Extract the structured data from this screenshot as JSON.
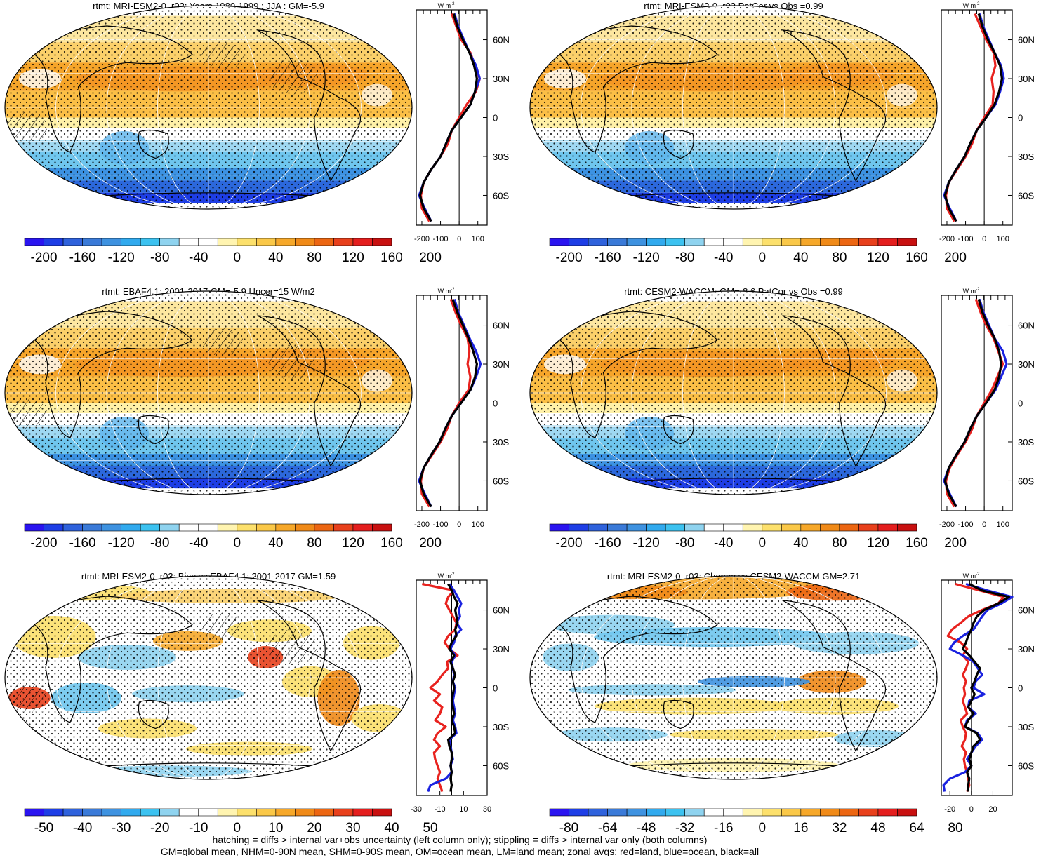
{
  "colorbars": [
    {
      "colors": [
        "#2a14f0",
        "#1e3ee6",
        "#2f62dc",
        "#3a7ad8",
        "#3e92e0",
        "#31aaee",
        "#3cc2f0",
        "#8fd3ef",
        "#ffffff",
        "#ffffff",
        "#fff4b0",
        "#fce06c",
        "#fac848",
        "#f6a82a",
        "#f08a18",
        "#ec6612",
        "#e8401c",
        "#e41e1e",
        "#c81010"
      ],
      "labels": [
        "-200",
        "-160",
        "-120",
        "-80",
        "-40",
        "0",
        "40",
        "80",
        "120",
        "160",
        "200"
      ]
    },
    {
      "colors": [
        "#2a14f0",
        "#1e3ee6",
        "#2f62dc",
        "#3a7ad8",
        "#3e92e0",
        "#31aaee",
        "#3cc2f0",
        "#8fd3ef",
        "#ffffff",
        "#ffffff",
        "#fff4b0",
        "#fce06c",
        "#fac848",
        "#f6a82a",
        "#f08a18",
        "#ec6612",
        "#e8401c",
        "#e41e1e",
        "#c81010"
      ],
      "labels": [
        "-50",
        "-40",
        "-30",
        "-20",
        "-10",
        "0",
        "10",
        "20",
        "30",
        "40",
        "50"
      ]
    },
    {
      "colors": [
        "#2a14f0",
        "#1e3ee6",
        "#2f62dc",
        "#3a7ad8",
        "#3e92e0",
        "#31aaee",
        "#3cc2f0",
        "#8fd3ef",
        "#ffffff",
        "#ffffff",
        "#fff4b0",
        "#fce06c",
        "#fac848",
        "#f6a82a",
        "#f08a18",
        "#ec6612",
        "#e8401c",
        "#e41e1e",
        "#c81010"
      ],
      "labels": [
        "-80",
        "-64",
        "-48",
        "-32",
        "-16",
        "0",
        "16",
        "32",
        "48",
        "64",
        "80"
      ]
    }
  ],
  "zonal_common": {
    "unit_label": "W m",
    "unit_exp": "-2",
    "lat_labels": [
      "60N",
      "30N",
      "0",
      "30S",
      "60S"
    ],
    "line_colors": {
      "land": "#e8221e",
      "ocean": "#1a22e0",
      "all": "#000000"
    }
  },
  "footer": {
    "line1": "hatching = diffs > internal var+obs uncertainty (left column only); stippling = diffs > internal var only (both columns)",
    "line2": "GM=global mean, NHM=0-90N mean, SHM=0-90S mean, OM=ocean mean, LM=land mean; zonal avgs: red=land, blue=ocean, black=all"
  },
  "chart_data": [
    {
      "type": "heatmap",
      "title": "rtmt: MRI-ESM2-0_r03: Years 1980-1999 : JJA : GM=-5.9",
      "colorbar": 0,
      "map_style": "clim",
      "zonal": {
        "xticklabels": [
          "-200",
          "-100",
          "0",
          "100"
        ],
        "xticks": [
          -200,
          -100,
          0,
          100
        ],
        "xlim": [
          -230,
          150
        ],
        "lat": [
          80,
          70,
          60,
          50,
          40,
          30,
          20,
          10,
          0,
          -10,
          -20,
          -30,
          -40,
          -50,
          -60,
          -70,
          -80
        ],
        "all": [
          -30,
          -10,
          20,
          55,
          80,
          95,
          85,
          60,
          10,
          -40,
          -70,
          -100,
          -150,
          -190,
          -210,
          -190,
          -150
        ],
        "land": [
          -40,
          -15,
          10,
          60,
          85,
          110,
          90,
          40,
          0,
          -40,
          -60,
          -100,
          -150,
          -190,
          -205,
          -200,
          -160
        ],
        "ocean": [
          -25,
          -5,
          25,
          55,
          90,
          110,
          85,
          60,
          10,
          -40,
          -70,
          -100,
          -150,
          -190,
          -215,
          -185,
          -150
        ]
      }
    },
    {
      "type": "heatmap",
      "title": "rtmt: MRI-ESM2-0_r03 PatCor vs Obs =0.99",
      "colorbar": 0,
      "map_style": "clim",
      "zonal": {
        "xticklabels": [
          "-200",
          "-100",
          "0",
          "100"
        ],
        "xticks": [
          -200,
          -100,
          0,
          100
        ],
        "xlim": [
          -230,
          150
        ],
        "lat": [
          80,
          70,
          60,
          50,
          40,
          30,
          20,
          10,
          0,
          -10,
          -20,
          -30,
          -40,
          -50,
          -60,
          -70,
          -80
        ],
        "all": [
          -30,
          -10,
          20,
          55,
          85,
          95,
          80,
          55,
          10,
          -40,
          -75,
          -105,
          -150,
          -190,
          -210,
          -190,
          -150
        ],
        "land": [
          -50,
          -20,
          10,
          50,
          60,
          40,
          50,
          45,
          0,
          -40,
          -65,
          -100,
          -145,
          -190,
          -205,
          -200,
          -160
        ],
        "ocean": [
          -25,
          -5,
          25,
          55,
          90,
          105,
          85,
          60,
          10,
          -40,
          -75,
          -105,
          -150,
          -190,
          -215,
          -185,
          -150
        ]
      }
    },
    {
      "type": "heatmap",
      "title": "rtmt: EBAF4.1: 2001-2017 GM=-5.9 Uncer=15 W/m2",
      "colorbar": 0,
      "map_style": "clim",
      "zonal": {
        "xticklabels": [
          "-200",
          "-100",
          "0",
          "100"
        ],
        "xticks": [
          -200,
          -100,
          0,
          100
        ],
        "xlim": [
          -230,
          150
        ],
        "lat": [
          80,
          70,
          60,
          50,
          40,
          30,
          20,
          10,
          0,
          -10,
          -20,
          -30,
          -40,
          -50,
          -60,
          -70,
          -80
        ],
        "all": [
          -35,
          -10,
          20,
          50,
          75,
          95,
          85,
          60,
          10,
          -40,
          -75,
          -105,
          -150,
          -190,
          -210,
          -190,
          -150
        ],
        "land": [
          -45,
          -20,
          10,
          45,
          55,
          45,
          60,
          50,
          0,
          -40,
          -65,
          -100,
          -145,
          -190,
          -205,
          -200,
          -160
        ],
        "ocean": [
          -25,
          -5,
          25,
          55,
          90,
          115,
          90,
          60,
          10,
          -40,
          -75,
          -105,
          -150,
          -190,
          -215,
          -185,
          -150
        ]
      }
    },
    {
      "type": "heatmap",
      "title": "rtmt: CESM2-WACCM: GM=-8.6 PatCor vs Obs =0.99",
      "colorbar": 0,
      "map_style": "clim",
      "zonal": {
        "xticklabels": [
          "-200",
          "-100",
          "0",
          "100"
        ],
        "xticks": [
          -200,
          -100,
          0,
          100
        ],
        "xlim": [
          -230,
          150
        ],
        "lat": [
          80,
          70,
          60,
          50,
          40,
          30,
          20,
          10,
          0,
          -10,
          -20,
          -30,
          -40,
          -50,
          -60,
          -70,
          -80
        ],
        "all": [
          -30,
          -10,
          20,
          55,
          80,
          90,
          80,
          55,
          10,
          -40,
          -75,
          -105,
          -150,
          -190,
          -210,
          -190,
          -150
        ],
        "land": [
          -45,
          -20,
          10,
          50,
          75,
          100,
          70,
          40,
          0,
          -40,
          -65,
          -100,
          -145,
          -185,
          -205,
          -200,
          -160
        ],
        "ocean": [
          -25,
          -5,
          25,
          55,
          100,
          120,
          90,
          60,
          10,
          -40,
          -75,
          -105,
          -150,
          -190,
          -215,
          -185,
          -150
        ]
      }
    },
    {
      "type": "heatmap",
      "title": "rtmt: MRI-ESM2-0_r03: Bias vs EBAF4.1: 2001-2017 GM=1.59",
      "colorbar": 1,
      "map_style": "bias",
      "zonal": {
        "xticklabels": [
          "-30",
          "-10",
          "10",
          "30"
        ],
        "xticks": [
          -30,
          -10,
          10,
          30
        ],
        "xlim": [
          -30,
          30
        ],
        "lat": [
          80,
          75,
          70,
          65,
          60,
          55,
          50,
          45,
          40,
          35,
          30,
          25,
          20,
          15,
          10,
          5,
          0,
          -5,
          -10,
          -15,
          -20,
          -25,
          -30,
          -35,
          -40,
          -45,
          -50,
          -55,
          -60,
          -65,
          -70,
          -75,
          -80
        ],
        "all": [
          -3,
          0,
          2,
          5,
          3,
          4,
          5,
          3,
          4,
          0,
          -2,
          2,
          -1,
          1,
          3,
          1,
          2,
          1,
          0,
          1,
          2,
          0,
          2,
          3,
          -3,
          -2,
          0,
          0,
          -1,
          0,
          -1,
          0,
          -1
        ],
        "land": [
          -25,
          2,
          -3,
          -5,
          -2,
          1,
          4,
          3,
          -3,
          -6,
          -2,
          5,
          -4,
          -3,
          -8,
          -12,
          -18,
          -10,
          -15,
          -8,
          -10,
          -14,
          -5,
          -12,
          -15,
          -10,
          -15,
          -14,
          -12,
          -10,
          -12,
          -10,
          -8
        ],
        "ocean": [
          -2,
          2,
          5,
          8,
          6,
          7,
          4,
          8,
          3,
          2,
          -1,
          3,
          0,
          1,
          2,
          1,
          3,
          2,
          1,
          2,
          3,
          1,
          3,
          4,
          -2,
          -1,
          0,
          1,
          -1,
          0,
          -5,
          -18,
          -20
        ]
      }
    },
    {
      "type": "heatmap",
      "title": "rtmt: MRI-ESM2-0_r03: Change vs CESM2-WACCM GM=2.71",
      "colorbar": 2,
      "map_style": "change",
      "zonal": {
        "xticklabels": [
          "-20",
          "0",
          "20"
        ],
        "xticks": [
          -20,
          0,
          20
        ],
        "xlim": [
          -28,
          38
        ],
        "lat": [
          80,
          75,
          70,
          65,
          60,
          55,
          50,
          45,
          40,
          35,
          30,
          25,
          20,
          15,
          10,
          5,
          0,
          -5,
          -10,
          -15,
          -20,
          -25,
          -30,
          -35,
          -40,
          -45,
          -50,
          -55,
          -60,
          -65,
          -70,
          -75,
          -80
        ],
        "all": [
          -2,
          10,
          35,
          25,
          12,
          5,
          2,
          0,
          -3,
          -5,
          -8,
          -2,
          3,
          8,
          5,
          3,
          0,
          3,
          0,
          -3,
          2,
          -3,
          -6,
          5,
          8,
          2,
          0,
          -2,
          0,
          -4,
          -2,
          -3,
          -3
        ],
        "land": [
          -15,
          8,
          30,
          25,
          10,
          -3,
          -10,
          -18,
          -22,
          -10,
          -4,
          -8,
          -3,
          -5,
          -8,
          -5,
          -7,
          -6,
          -8,
          -6,
          -4,
          -10,
          -8,
          -5,
          -6,
          -9,
          -5,
          -7,
          -6,
          -4,
          -3,
          -2,
          -4
        ],
        "ocean": [
          -5,
          15,
          38,
          28,
          15,
          10,
          6,
          2,
          -8,
          -16,
          -20,
          -8,
          2,
          6,
          10,
          4,
          2,
          12,
          -2,
          -3,
          4,
          -4,
          -6,
          6,
          10,
          4,
          0,
          -4,
          0,
          -6,
          -20,
          -26,
          -25
        ]
      }
    }
  ]
}
